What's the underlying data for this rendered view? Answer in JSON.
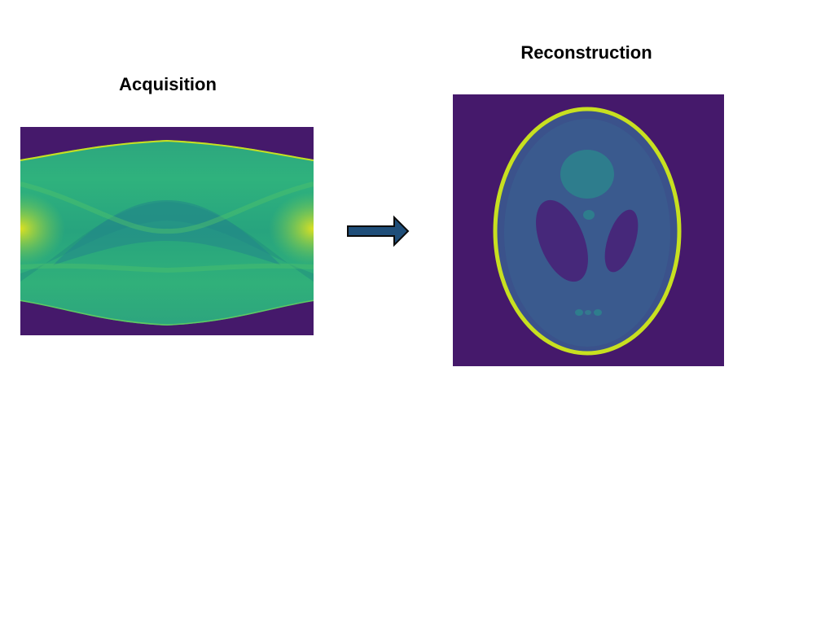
{
  "slide": {
    "acquisition_title": "Acquisition",
    "reconstruction_title": "Reconstruction"
  },
  "colors": {
    "background": "#ffffff",
    "colormap_low": "#45196b",
    "colormap_mid": "#2ca27f",
    "colormap_high": "#e7e41c",
    "arrow_fill": "#1f4e79",
    "arrow_stroke": "#0b0b0b"
  },
  "icons": {
    "flow_arrow": "right-arrow-icon"
  }
}
